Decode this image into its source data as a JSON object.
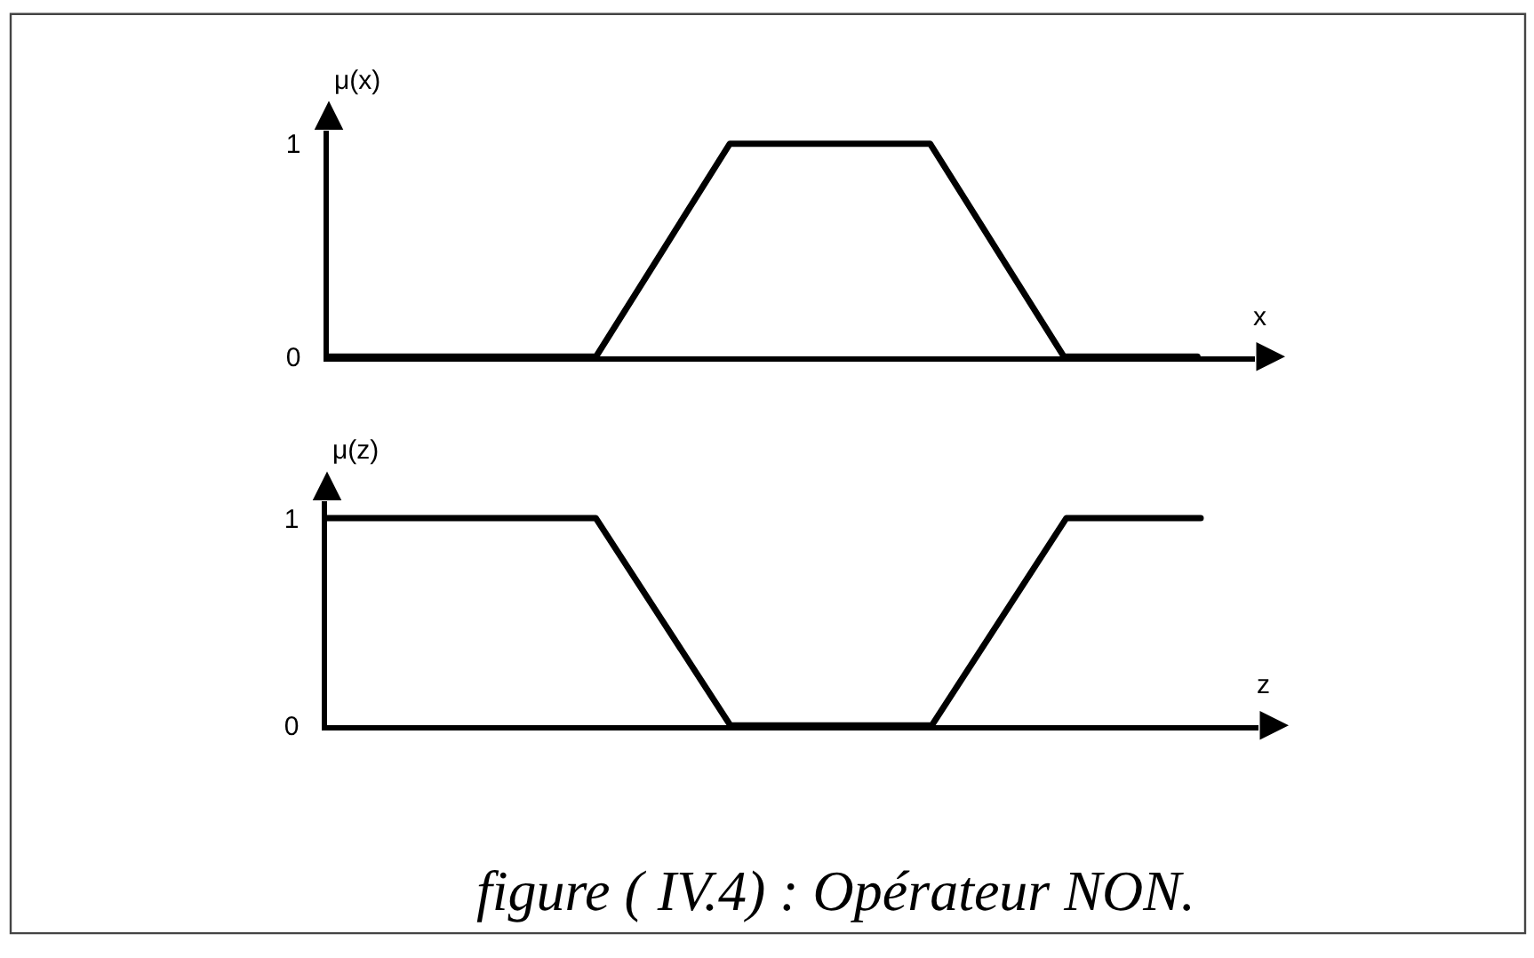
{
  "chart_data": [
    {
      "type": "line",
      "ylabel": "μ(x)",
      "xlabel": "x",
      "categories": [
        null,
        null,
        null,
        null,
        null,
        null,
        null,
        null,
        null,
        null,
        null,
        null,
        null,
        null
      ],
      "values": [
        0,
        0,
        0,
        0,
        0,
        0.5,
        1,
        1,
        1,
        1,
        0.5,
        0,
        0,
        0
      ],
      "color": "#000000",
      "ylim": [
        0,
        1.06
      ],
      "yticks": [
        0,
        1
      ],
      "tick_labels": "y"
    },
    {
      "type": "line",
      "ylabel": "μ(z)",
      "xlabel": "z",
      "categories": [
        null,
        null,
        null,
        null,
        null,
        null,
        null,
        null,
        null,
        null,
        null,
        null,
        null,
        null
      ],
      "values": [
        1,
        1,
        1,
        1,
        1,
        0.5,
        0,
        0,
        0,
        0,
        0.5,
        1,
        1,
        1
      ],
      "color": "#000000",
      "ylim": [
        0,
        1.08
      ],
      "yticks": [
        0,
        1
      ],
      "tick_labels": "y",
      "annotations": [
        "figure ( IV.4) : Opérateur NON."
      ]
    }
  ]
}
